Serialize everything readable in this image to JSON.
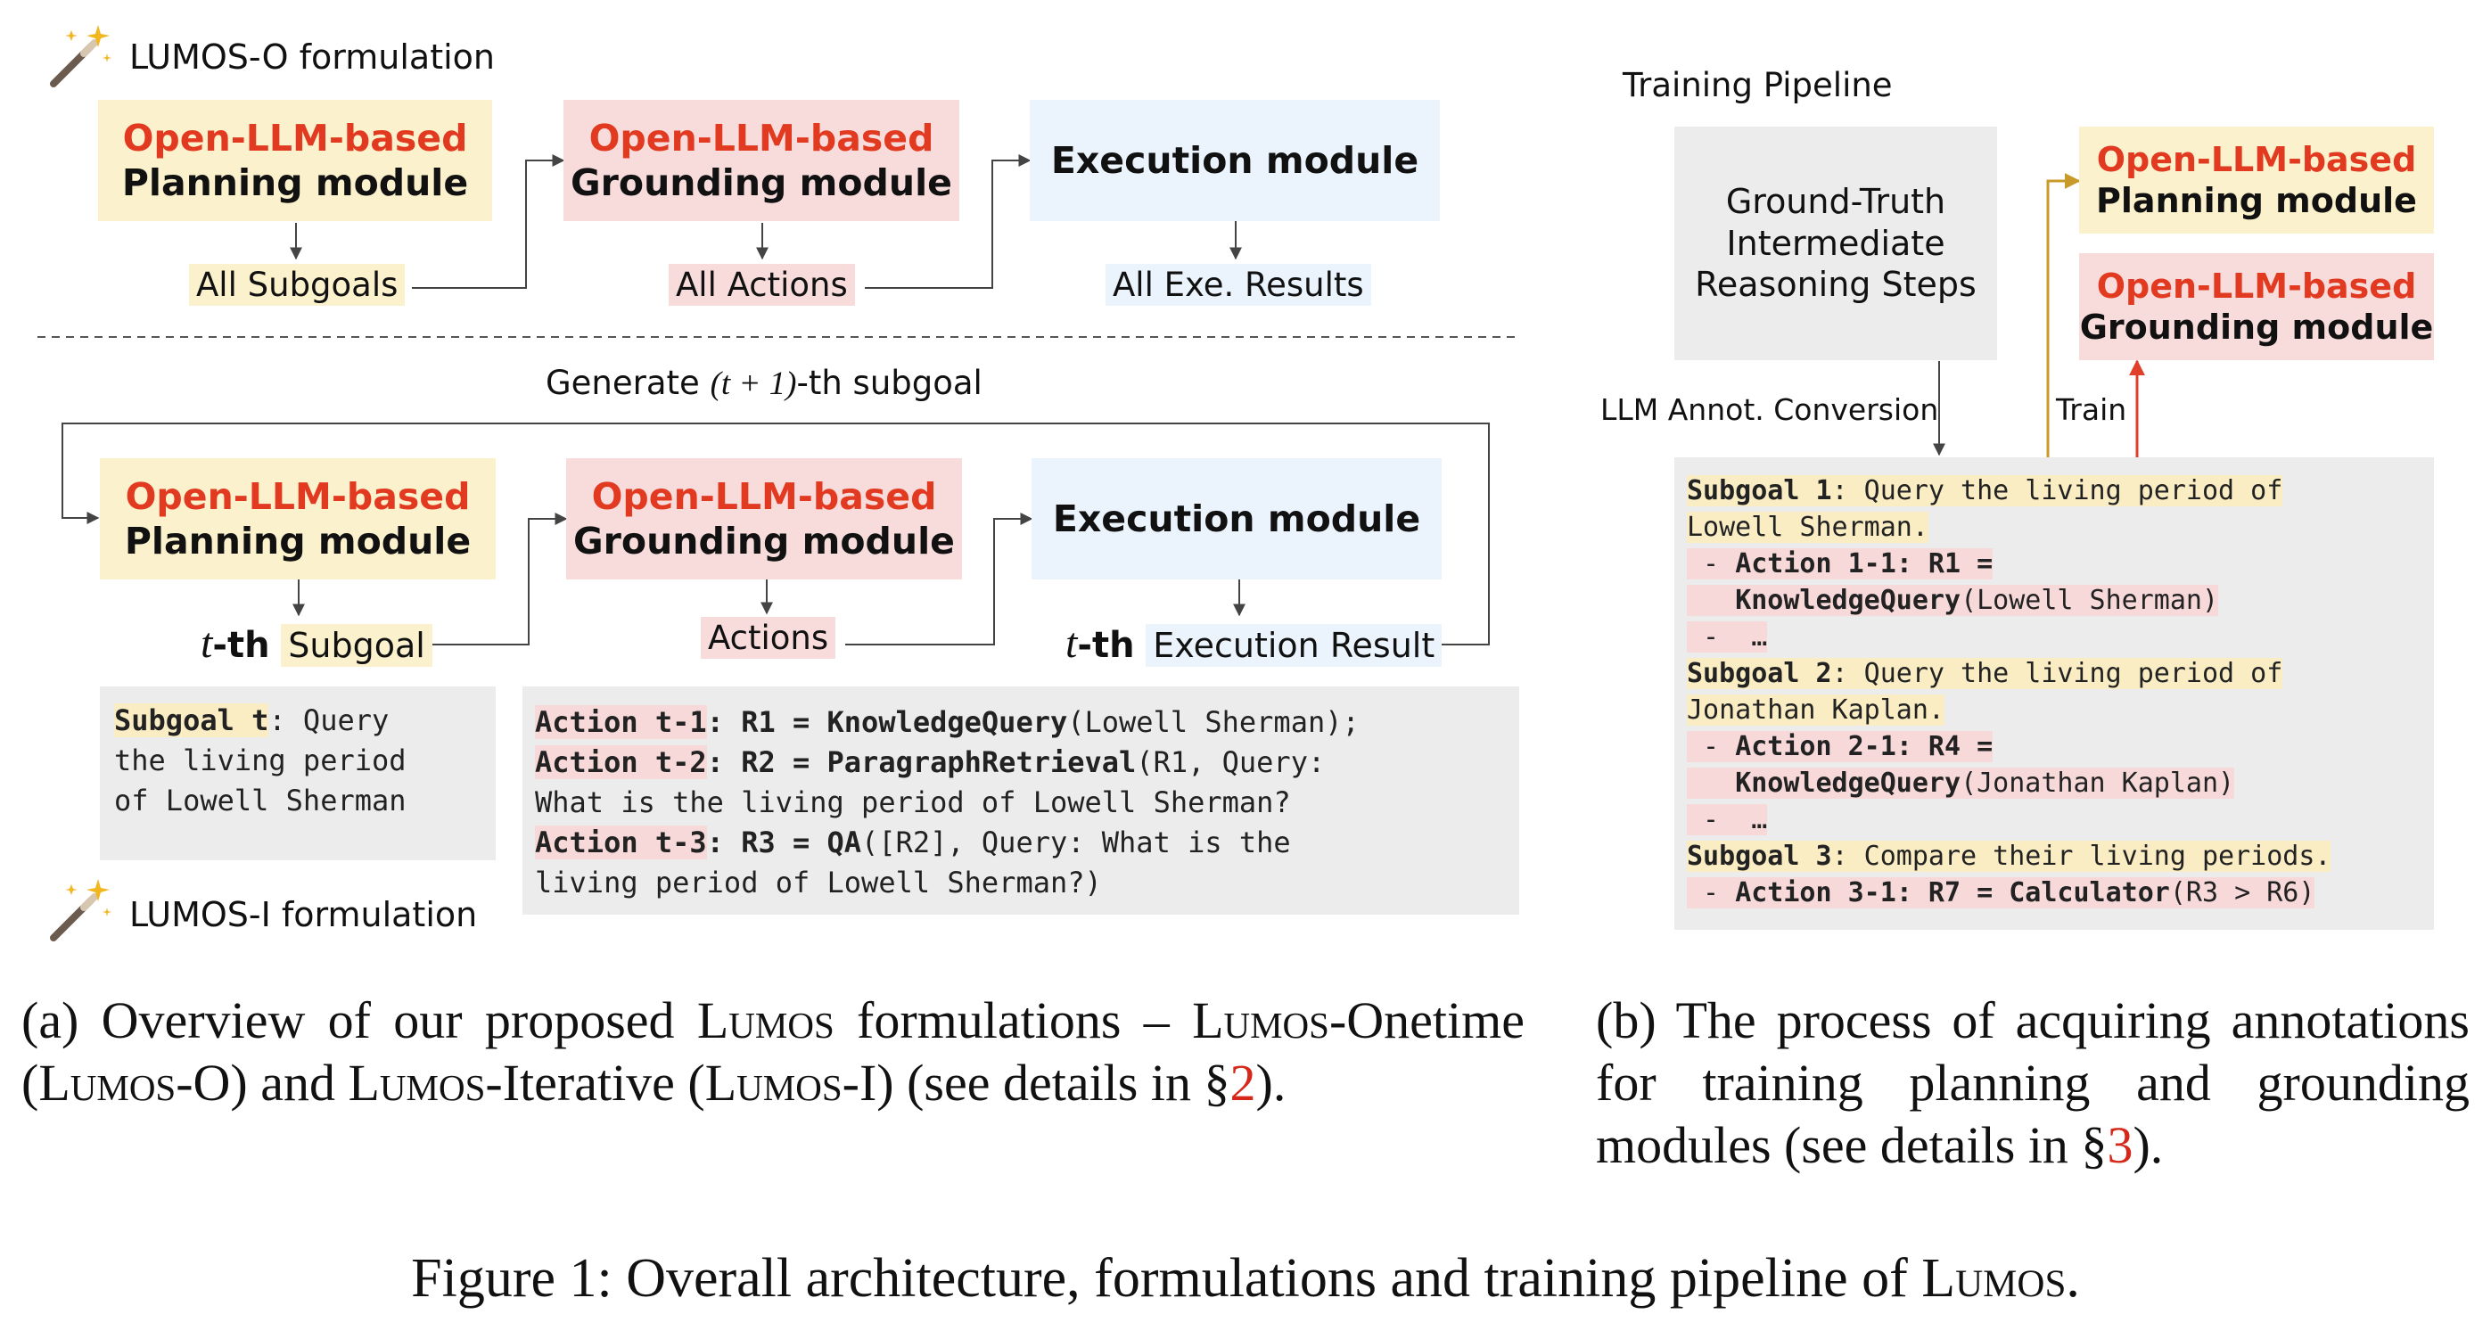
{
  "left": {
    "lumos_o_title": "LUMOS-O formulation",
    "lumos_i_title": "LUMOS-I formulation",
    "planning_line1": "Open-LLM-based",
    "planning_line2": "Planning module",
    "grounding_line1": "Open-LLM-based",
    "grounding_line2": "Grounding module",
    "execution": "Execution module",
    "all_subgoals": "All Subgoals",
    "all_actions": "All Actions",
    "all_results": "All Exe. Results",
    "generate_pre": "Generate ",
    "generate_math": "(t + 1)",
    "generate_post": "-th subgoal",
    "t_th": "t",
    "t_th_suffix": "-th",
    "subgoal_word": "Subgoal",
    "actions_word": "Actions",
    "exec_result_word": "Execution Result",
    "subgoal_example": {
      "head": "Subgoal t",
      "rest1": ": Query",
      "line2": "the living period",
      "line3": "of Lowell Sherman"
    },
    "actions_example": {
      "a1_head": "Action t-1",
      "a1_mid": ": R1 = ",
      "a1_fn": "KnowledgeQuery",
      "a1_args": "(Lowell Sherman);",
      "a2_head": "Action t-2",
      "a2_mid": ": R2 = ",
      "a2_fn": "ParagraphRetrieval",
      "a2_args": "(R1, Query:",
      "a2_line2": "What is the living period of Lowell Sherman?",
      "a3_head": "Action t-3",
      "a3_mid": ": R3 = ",
      "a3_fn": "QA",
      "a3_args": "([R2], Query: What is the",
      "a3_line2": "living period of Lowell Sherman?)"
    }
  },
  "right": {
    "title": "Training Pipeline",
    "gt_line1": "Ground-Truth",
    "gt_line2": "Intermediate",
    "gt_line3": "Reasoning Steps",
    "conversion_label": "LLM Annot. Conversion",
    "train_label": "Train",
    "planning_line1": "Open-LLM-based",
    "planning_line2": "Planning module",
    "grounding_line1": "Open-LLM-based",
    "grounding_line2": "Grounding module",
    "code": {
      "s1_head": "Subgoal 1",
      "s1_text": ": Query the living period of",
      "s1_line2": "Lowell Sherman.",
      "a11_dash": " - ",
      "a11_head": "Action 1-1",
      "a11_mid": ": R1 =",
      "a11_fn": "KnowledgeQuery",
      "a11_args": "(Lowell Sherman)",
      "ellipsis": "…",
      "s2_head": "Subgoal 2",
      "s2_text": ": Query the living period of",
      "s2_line2": "Jonathan Kaplan.",
      "a21_head": "Action 2-1",
      "a21_mid": ": R4 =",
      "a21_fn": "KnowledgeQuery",
      "a21_args": "(Jonathan Kaplan)",
      "s3_head": "Subgoal 3",
      "s3_text": ": Compare their living periods.",
      "a31_head": "Action 3-1",
      "a31_mid": ": R7 = ",
      "a31_fn": "Calculator",
      "a31_args": "(R3 > R6)"
    }
  },
  "captions": {
    "a_prefix": "(a) Overview of our proposed ",
    "lumos": "Lumos",
    "a_mid1": " formulations – ",
    "a_mid2": "-Onetime (",
    "a_mid3": "-O) and ",
    "a_mid4": "-Iterative (",
    "a_mid5": "-I) (see details in §",
    "a_ref": "2",
    "a_end": ").",
    "b_text": "(b) The process of acquiring annotations for training planning and grounding modules (see details in §",
    "b_ref": "3",
    "b_end": ").",
    "fig_prefix": "Figure 1: Overall architecture, formulations and training pipeline of ",
    "fig_end": "."
  },
  "colors": {
    "red_text": "#e13a20",
    "yellow_fill": "#fbf1cc",
    "pink_fill": "#f8dcdc",
    "blue_fill": "#ebf3fd",
    "gray_fill": "#ececec",
    "train_arrow": "#c89a2a",
    "red_arrow": "#e0402a"
  },
  "icons": [
    "magic-wand-icon"
  ]
}
